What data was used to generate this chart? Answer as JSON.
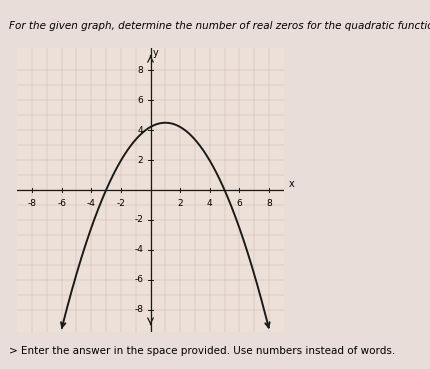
{
  "title": "For the given graph, determine the number of real zeros for the quadratic function.",
  "subtitle": "> Enter the answer in the space provided. Use numbers instead of words.",
  "xlabel": "x",
  "ylabel": "y",
  "xlim": [
    -9,
    9
  ],
  "ylim": [
    -9.5,
    9.5
  ],
  "xticks": [
    -8,
    -6,
    -4,
    -2,
    0,
    2,
    4,
    6,
    8
  ],
  "yticks": [
    -8,
    -6,
    -4,
    -2,
    0,
    2,
    4,
    6,
    8
  ],
  "grid_color": "#c8b8b0",
  "bg_color": "#ede0d8",
  "parabola_color": "#1a1a1a",
  "parabola_linewidth": 1.4,
  "vertex_x": 1.0,
  "vertex_y": 4.5,
  "zero1": -3.0,
  "axis_color": "#1a1a1a",
  "tick_fontsize": 6.5,
  "title_fontsize": 7.5,
  "subtitle_fontsize": 7.5,
  "fig_bg": "#e8ddd8"
}
